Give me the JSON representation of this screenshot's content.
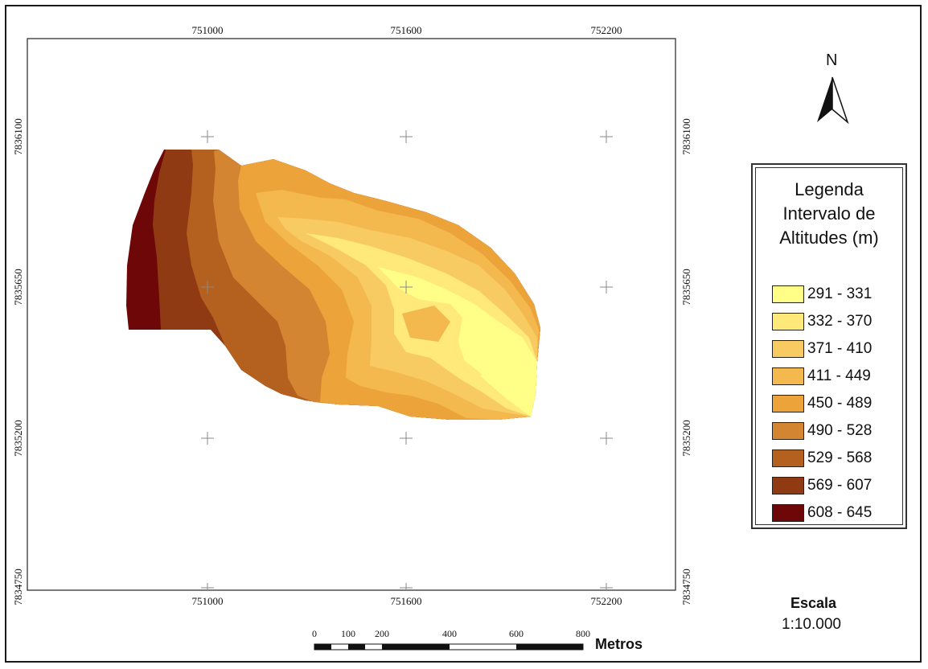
{
  "map": {
    "x_ticks": [
      "751000",
      "751600",
      "752200"
    ],
    "y_ticks": [
      "7836100",
      "7835650",
      "7835200",
      "7834750"
    ]
  },
  "north_arrow": {
    "label": "N",
    "icon": "north-arrow-icon"
  },
  "legend": {
    "title_lines": [
      "Legenda",
      "Intervalo de",
      "Altitudes (m)"
    ],
    "items": [
      {
        "label": "291 - 331",
        "color": "#FFFF88"
      },
      {
        "label": "332 - 370",
        "color": "#FFE97A"
      },
      {
        "label": "371 - 410",
        "color": "#F7CB62"
      },
      {
        "label": "411 - 449",
        "color": "#F3B84E"
      },
      {
        "label": "450 - 489",
        "color": "#ECA43A"
      },
      {
        "label": "490 - 528",
        "color": "#D38532"
      },
      {
        "label": "529 - 568",
        "color": "#B4601E"
      },
      {
        "label": "569 - 607",
        "color": "#8F3A12"
      },
      {
        "label": "608 - 645",
        "color": "#6E0808"
      }
    ]
  },
  "scale": {
    "title": "Escala",
    "value": "1:10.000",
    "unit_label": "Metros",
    "ticks": [
      "0",
      "100",
      "200",
      "400",
      "600",
      "800"
    ]
  }
}
